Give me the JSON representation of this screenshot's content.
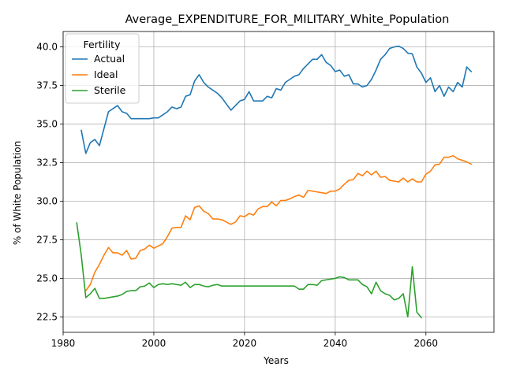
{
  "chart_data": {
    "type": "line",
    "title": "Average_EXPENDITURE_FOR_MILITARY_White_Population",
    "xlabel": "Years",
    "ylabel": "% of White Population",
    "xlim": [
      1980,
      2075
    ],
    "ylim": [
      21.5,
      41.0
    ],
    "x_ticks": [
      1980,
      2000,
      2020,
      2040,
      2060
    ],
    "y_ticks": [
      22.5,
      25.0,
      27.5,
      30.0,
      32.5,
      35.0,
      37.5,
      40.0
    ],
    "grid": true,
    "legend": {
      "title": "Fertility",
      "position": "top-left"
    },
    "series": [
      {
        "name": "Actual",
        "color": "#1f77b4",
        "x": [
          1984,
          1985,
          1986,
          1987,
          1988,
          1989,
          1990,
          1991,
          1992,
          1993,
          1994,
          1995,
          1996,
          1997,
          1998,
          1999,
          2000,
          2001,
          2002,
          2003,
          2004,
          2005,
          2006,
          2007,
          2008,
          2009,
          2010,
          2011,
          2012,
          2013,
          2014,
          2015,
          2016,
          2017,
          2018,
          2019,
          2020,
          2021,
          2022,
          2023,
          2024,
          2025,
          2026,
          2027,
          2028,
          2029,
          2030,
          2031,
          2032,
          2033,
          2034,
          2035,
          2036,
          2037,
          2038,
          2039,
          2040,
          2041,
          2042,
          2043,
          2044,
          2045,
          2046,
          2047,
          2048,
          2049,
          2050,
          2051,
          2052,
          2053,
          2054,
          2055,
          2056,
          2057,
          2058,
          2059,
          2060,
          2061,
          2062,
          2063,
          2064,
          2065,
          2066,
          2067,
          2068,
          2069,
          2070
        ],
        "values": [
          34.6,
          33.1,
          33.8,
          34.0,
          33.6,
          34.7,
          35.8,
          36.0,
          36.2,
          35.8,
          35.7,
          35.35,
          35.35,
          35.35,
          35.35,
          35.35,
          35.4,
          35.4,
          35.6,
          35.8,
          36.1,
          36.0,
          36.1,
          36.8,
          36.9,
          37.8,
          38.2,
          37.7,
          37.4,
          37.2,
          37.0,
          36.7,
          36.3,
          35.9,
          36.2,
          36.5,
          36.6,
          37.1,
          36.5,
          36.5,
          36.5,
          36.8,
          36.7,
          37.3,
          37.2,
          37.7,
          37.9,
          38.1,
          38.2,
          38.6,
          38.9,
          39.2,
          39.2,
          39.5,
          39.0,
          38.8,
          38.4,
          38.5,
          38.1,
          38.2,
          37.6,
          37.6,
          37.4,
          37.5,
          37.9,
          38.5,
          39.2,
          39.5,
          39.9,
          40.0,
          40.05,
          39.9,
          39.6,
          39.55,
          38.7,
          38.3,
          37.7,
          38.0,
          37.1,
          37.5,
          36.8,
          37.4,
          37.1,
          37.7,
          37.4,
          38.7,
          38.4
        ]
      },
      {
        "name": "Ideal",
        "color": "#ff7f0e",
        "x": [
          1985,
          1986,
          1987,
          1988,
          1989,
          1990,
          1991,
          1992,
          1993,
          1994,
          1995,
          1996,
          1997,
          1998,
          1999,
          2000,
          2001,
          2002,
          2003,
          2004,
          2005,
          2006,
          2007,
          2008,
          2009,
          2010,
          2011,
          2012,
          2013,
          2014,
          2015,
          2016,
          2017,
          2018,
          2019,
          2020,
          2021,
          2022,
          2023,
          2024,
          2025,
          2026,
          2027,
          2028,
          2029,
          2030,
          2031,
          2032,
          2033,
          2034,
          2035,
          2036,
          2037,
          2038,
          2039,
          2040,
          2041,
          2042,
          2043,
          2044,
          2045,
          2046,
          2047,
          2048,
          2049,
          2050,
          2051,
          2052,
          2053,
          2054,
          2055,
          2056,
          2057,
          2058,
          2059,
          2060,
          2061,
          2062,
          2063,
          2064,
          2065,
          2066,
          2067,
          2068,
          2069,
          2070
        ],
        "values": [
          24.2,
          24.6,
          25.4,
          25.9,
          26.5,
          27.0,
          26.65,
          26.65,
          26.5,
          26.8,
          26.25,
          26.3,
          26.8,
          26.9,
          27.15,
          26.95,
          27.1,
          27.25,
          27.7,
          28.25,
          28.3,
          28.3,
          29.05,
          28.8,
          29.6,
          29.7,
          29.35,
          29.2,
          28.85,
          28.85,
          28.8,
          28.65,
          28.5,
          28.65,
          29.05,
          29.0,
          29.2,
          29.1,
          29.5,
          29.65,
          29.65,
          29.95,
          29.7,
          30.05,
          30.05,
          30.15,
          30.3,
          30.4,
          30.25,
          30.7,
          30.65,
          30.6,
          30.55,
          30.5,
          30.65,
          30.65,
          30.8,
          31.1,
          31.35,
          31.4,
          31.8,
          31.65,
          31.95,
          31.7,
          31.95,
          31.55,
          31.6,
          31.35,
          31.3,
          31.25,
          31.5,
          31.25,
          31.45,
          31.25,
          31.25,
          31.75,
          31.95,
          32.35,
          32.4,
          32.85,
          32.85,
          32.95,
          32.75,
          32.65,
          32.55,
          32.4
        ]
      },
      {
        "name": "Sterile",
        "color": "#2ca02c",
        "x": [
          1983,
          1984,
          1985,
          1986,
          1987,
          1988,
          1989,
          1990,
          1991,
          1992,
          1993,
          1994,
          1995,
          1996,
          1997,
          1998,
          1999,
          2000,
          2001,
          2002,
          2003,
          2004,
          2005,
          2006,
          2007,
          2008,
          2009,
          2010,
          2011,
          2012,
          2013,
          2014,
          2015,
          2016,
          2017,
          2018,
          2019,
          2020,
          2021,
          2022,
          2023,
          2024,
          2025,
          2026,
          2027,
          2028,
          2029,
          2030,
          2031,
          2032,
          2033,
          2034,
          2035,
          2036,
          2037,
          2038,
          2039,
          2040,
          2041,
          2042,
          2043,
          2044,
          2045,
          2046,
          2047,
          2048,
          2049,
          2050,
          2051,
          2052,
          2053,
          2054,
          2055,
          2056,
          2057,
          2058,
          2059
        ],
        "values": [
          28.6,
          26.5,
          23.75,
          24.0,
          24.35,
          23.7,
          23.7,
          23.75,
          23.8,
          23.85,
          23.95,
          24.15,
          24.2,
          24.2,
          24.45,
          24.5,
          24.7,
          24.4,
          24.6,
          24.65,
          24.6,
          24.65,
          24.6,
          24.55,
          24.75,
          24.4,
          24.6,
          24.6,
          24.5,
          24.45,
          24.55,
          24.6,
          24.5,
          24.5,
          24.5,
          24.5,
          24.5,
          24.5,
          24.5,
          24.5,
          24.5,
          24.5,
          24.5,
          24.5,
          24.5,
          24.5,
          24.5,
          24.5,
          24.5,
          24.3,
          24.3,
          24.6,
          24.6,
          24.55,
          24.85,
          24.9,
          24.95,
          25.0,
          25.1,
          25.05,
          24.9,
          24.9,
          24.9,
          24.6,
          24.45,
          24.0,
          24.75,
          24.2,
          24.0,
          23.9,
          23.6,
          23.7,
          24.0,
          22.5,
          25.75,
          22.8,
          22.45
        ]
      }
    ]
  }
}
